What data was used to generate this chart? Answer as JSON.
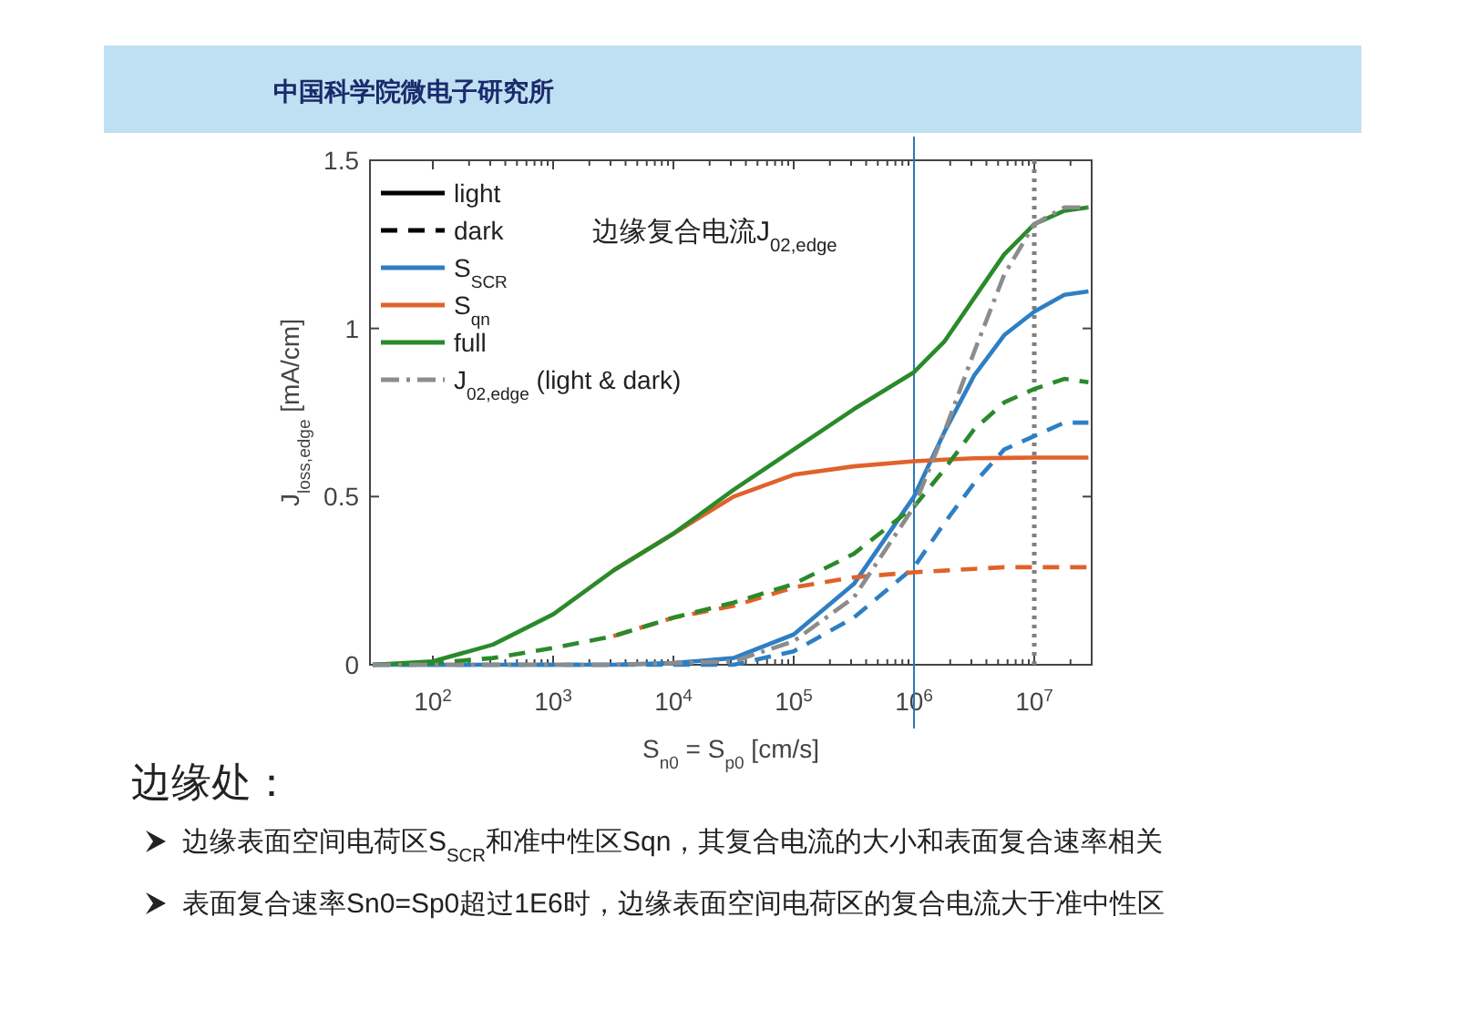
{
  "chart_data": {
    "type": "line",
    "xlabel": "S$_{n0}$ = S$_{p0}$ [cm/s]",
    "ylabel": "J$_{loss,edge}$ [mA/cm]",
    "log": "x",
    "xlim": [
      30,
      30000000
    ],
    "ylim": [
      0,
      1.5
    ],
    "xticks": [
      {
        "value": 100,
        "label": "10$^{2}$"
      },
      {
        "value": 1000,
        "label": "10$^{3}$"
      },
      {
        "value": 10000,
        "label": "10$^{4}$"
      },
      {
        "value": 100000,
        "label": "10$^{5}$"
      },
      {
        "value": 1000000,
        "label": "10$^{6}$"
      },
      {
        "value": 10000000,
        "label": "10$^{7}$"
      }
    ],
    "yticks": [
      0,
      0.5,
      1,
      1.5
    ],
    "legend": "top left",
    "x": [
      31.6,
      100,
      316,
      1000,
      3162,
      10000,
      31623,
      100000,
      316228,
      1000000,
      1778279,
      3162278,
      5623413,
      10000000,
      17782794,
      28183829
    ],
    "series": [
      {
        "name": "light",
        "color": "#000000",
        "line_style": "solid",
        "values": [
          null,
          null,
          null,
          null,
          null,
          null,
          null,
          null,
          null,
          null,
          null,
          null,
          null,
          null,
          null,
          null
        ]
      },
      {
        "name": "dark",
        "color": "#000000",
        "line_style": "dashed",
        "values": [
          null,
          null,
          null,
          null,
          null,
          null,
          null,
          null,
          null,
          null,
          null,
          null,
          null,
          null,
          null,
          null
        ]
      },
      {
        "name": "S$_{SCR}$",
        "color": "#2e7fc4",
        "line_style": "solid",
        "values": [
          0,
          0,
          0,
          0,
          0,
          0.005,
          0.02,
          0.09,
          0.24,
          0.5,
          0.69,
          0.86,
          0.98,
          1.05,
          1.1,
          1.11
        ]
      },
      {
        "color": "#2e7fc4",
        "line_style": "dashed",
        "values": [
          0,
          0,
          0,
          0,
          0,
          0,
          0,
          0.04,
          0.14,
          0.29,
          0.42,
          0.54,
          0.64,
          0.68,
          0.72,
          0.72
        ]
      },
      {
        "name": "S$_{qn}$",
        "color": "#e0622a",
        "line_style": "solid",
        "values": [
          null,
          null,
          null,
          null,
          0.28,
          0.39,
          0.5,
          0.565,
          0.59,
          0.605,
          0.61,
          0.614,
          0.615,
          0.616,
          0.616,
          0.616
        ]
      },
      {
        "color": "#e0622a",
        "line_style": "dashed",
        "values": [
          null,
          null,
          null,
          null,
          0.085,
          0.14,
          0.175,
          0.23,
          0.26,
          0.275,
          0.28,
          0.285,
          0.29,
          0.29,
          0.29,
          0.29
        ]
      },
      {
        "name": "full",
        "color": "#2a8a2a",
        "line_style": "solid",
        "values": [
          0,
          0.01,
          0.06,
          0.15,
          0.28,
          0.39,
          0.52,
          0.64,
          0.76,
          0.87,
          0.96,
          1.09,
          1.22,
          1.31,
          1.35,
          1.36
        ]
      },
      {
        "color": "#2a8a2a",
        "line_style": "dashed",
        "values": [
          0,
          0.005,
          0.02,
          0.05,
          0.085,
          0.14,
          0.185,
          0.24,
          0.33,
          0.47,
          0.58,
          0.7,
          0.78,
          0.82,
          0.85,
          0.84
        ]
      },
      {
        "name": "J$_{02,edge}$ (light & dark)",
        "color": "#8c8c8c",
        "line_style": "dashdot",
        "values": [
          0,
          0,
          0,
          0,
          0,
          0.005,
          0.01,
          0.07,
          0.2,
          0.47,
          0.69,
          0.93,
          1.16,
          1.31,
          1.36,
          1.36
        ]
      }
    ],
    "ref_lines": [
      {
        "axis": "x",
        "value": 1000000,
        "color": "#2e75b6",
        "line_style": "solid"
      },
      {
        "axis": "x",
        "value": 10000000,
        "color": "#7f7f7f",
        "line_style": "dotted"
      }
    ],
    "annotations": [
      "边缘复合电流J$_{02,edge}$",
      "边缘处：",
      "边缘表面空间电荷区S$_{SCR}$和准中性区Sqn，其复合电流的大小和表面复合速率相关",
      "表面复合速率Sn0=Sp0超过1E6时，边缘表面空间电荷区的复合电流大于准中性区",
      "中国科学院微电子研究所"
    ]
  }
}
